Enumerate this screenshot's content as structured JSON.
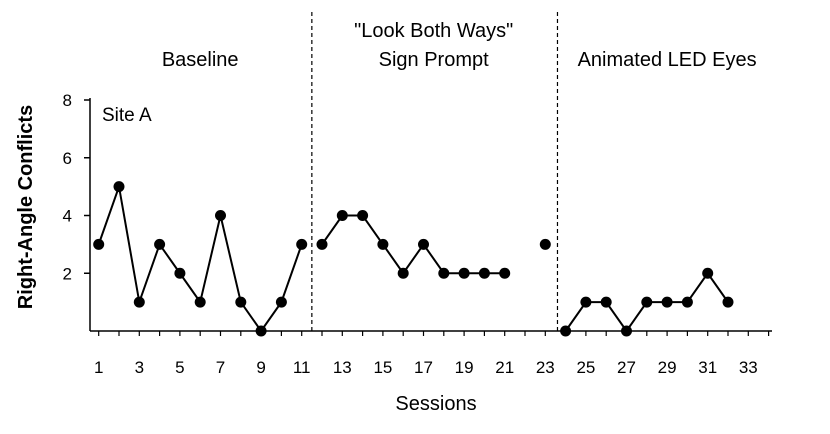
{
  "chart_data": {
    "type": "line",
    "site_label": "Site A",
    "xlabel": "Sessions",
    "ylabel": "Right-Angle Conflicts",
    "xlim": [
      0.5,
      34
    ],
    "ylim": [
      0,
      8
    ],
    "x_ticks": [
      1,
      3,
      5,
      7,
      9,
      11,
      13,
      15,
      17,
      19,
      21,
      23,
      25,
      27,
      29,
      31,
      33
    ],
    "x_tick_labels": [
      "1",
      "3",
      "5",
      "7",
      "9",
      "11",
      "13",
      "15",
      "17",
      "19",
      "21",
      "23",
      "25",
      "27",
      "29",
      "31",
      "33"
    ],
    "y_ticks": [
      2,
      4,
      6,
      8
    ],
    "y_tick_labels": [
      "2",
      "4",
      "6",
      "8"
    ],
    "phase_lines_x": [
      11.5,
      23.6
    ],
    "phases": [
      {
        "lines": [
          "Baseline"
        ],
        "center_x": 6
      },
      {
        "lines": [
          "\"Look Both Ways\"",
          "Sign Prompt"
        ],
        "center_x": 17.5
      },
      {
        "lines": [
          "Animated LED Eyes"
        ],
        "center_x": 29
      }
    ],
    "series": [
      {
        "segment": "baseline",
        "x": [
          1,
          2,
          3,
          4,
          5,
          6,
          7,
          8,
          9,
          10,
          11
        ],
        "y": [
          3,
          5,
          1,
          3,
          2,
          1,
          4,
          1,
          0,
          1,
          3
        ],
        "connected": true
      },
      {
        "segment": "sign-prompt",
        "x": [
          12,
          13,
          14,
          15,
          16,
          17,
          18,
          19,
          20,
          21
        ],
        "y": [
          3,
          4,
          4,
          3,
          2,
          3,
          2,
          2,
          2,
          2
        ],
        "connected": true
      },
      {
        "segment": "sign-prompt-isolated",
        "x": [
          23
        ],
        "y": [
          3
        ],
        "connected": false
      },
      {
        "segment": "led-eyes",
        "x": [
          24,
          25,
          26,
          27,
          28,
          29,
          30,
          31,
          32
        ],
        "y": [
          0,
          1,
          1,
          0,
          1,
          1,
          1,
          2,
          1
        ],
        "connected": true
      }
    ]
  }
}
